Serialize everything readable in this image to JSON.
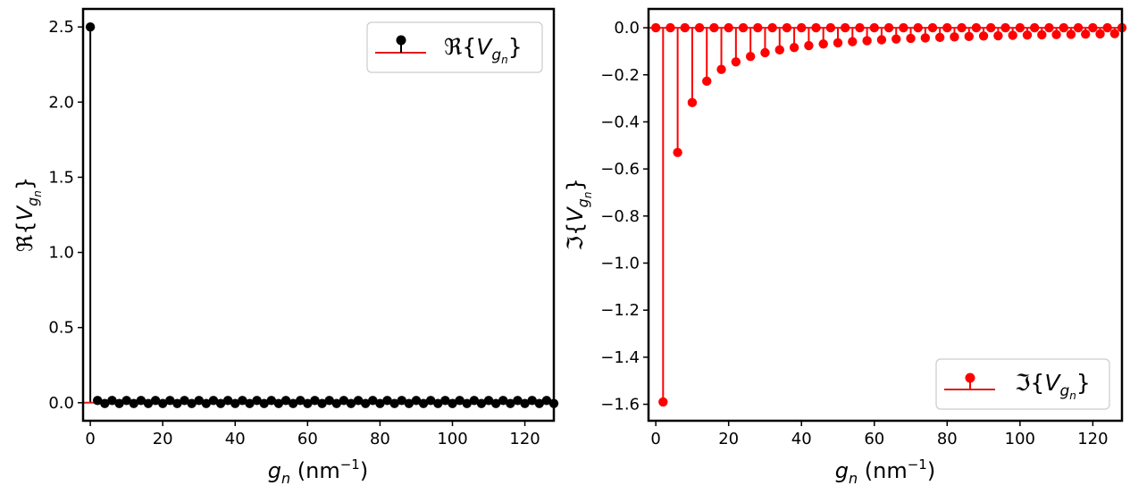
{
  "chart_data": [
    {
      "type": "stem",
      "panel": "left",
      "series": [
        {
          "name": "ℜ{V_gn}",
          "color": "#000000",
          "baseline_color": "#e31a1c",
          "x": [
            0,
            2,
            4,
            6,
            8,
            10,
            12,
            14,
            16,
            18,
            20,
            22,
            24,
            26,
            28,
            30,
            32,
            34,
            36,
            38,
            40,
            42,
            44,
            46,
            48,
            50,
            52,
            54,
            56,
            58,
            60,
            62,
            64,
            66,
            68,
            70,
            72,
            74,
            76,
            78,
            80,
            82,
            84,
            86,
            88,
            90,
            92,
            94,
            96,
            98,
            100,
            102,
            104,
            106,
            108,
            110,
            112,
            114,
            116,
            118,
            120,
            122,
            124,
            126,
            128
          ],
          "y": [
            2.5,
            0.015,
            -0.005,
            0.015,
            -0.005,
            0.015,
            -0.005,
            0.015,
            -0.005,
            0.015,
            -0.005,
            0.015,
            -0.005,
            0.015,
            -0.005,
            0.015,
            -0.005,
            0.015,
            -0.005,
            0.015,
            -0.005,
            0.015,
            -0.005,
            0.015,
            -0.005,
            0.015,
            -0.005,
            0.015,
            -0.005,
            0.015,
            -0.005,
            0.015,
            -0.005,
            0.015,
            -0.005,
            0.015,
            -0.005,
            0.015,
            -0.005,
            0.015,
            -0.005,
            0.015,
            -0.005,
            0.015,
            -0.005,
            0.015,
            -0.005,
            0.015,
            -0.005,
            0.015,
            -0.005,
            0.015,
            -0.005,
            0.015,
            -0.005,
            0.015,
            -0.005,
            0.015,
            -0.005,
            0.015,
            -0.005,
            0.015,
            -0.005,
            0.015,
            -0.005
          ]
        }
      ],
      "xlabel": "g_n (nm⁻¹)",
      "ylabel": "ℜ{V_gn}",
      "xlim": [
        -2,
        128
      ],
      "ylim": [
        -0.12,
        2.62
      ],
      "xticks": [
        0,
        20,
        40,
        60,
        80,
        100,
        120
      ],
      "yticks": [
        0.0,
        0.5,
        1.0,
        1.5,
        2.0,
        2.5
      ],
      "xtick_labels": [
        "0",
        "20",
        "40",
        "60",
        "80",
        "100",
        "120"
      ],
      "ytick_labels": [
        "0.0",
        "0.5",
        "1.0",
        "1.5",
        "2.0",
        "2.5"
      ],
      "legend_position": "upper right",
      "grid": false
    },
    {
      "type": "stem",
      "panel": "right",
      "series": [
        {
          "name": "ℑ{V_gn}",
          "color": "#ff0000",
          "baseline_color": "#e31a1c",
          "x": [
            0,
            2,
            4,
            6,
            8,
            10,
            12,
            14,
            16,
            18,
            20,
            22,
            24,
            26,
            28,
            30,
            32,
            34,
            36,
            38,
            40,
            42,
            44,
            46,
            48,
            50,
            52,
            54,
            56,
            58,
            60,
            62,
            64,
            66,
            68,
            70,
            72,
            74,
            76,
            78,
            80,
            82,
            84,
            86,
            88,
            90,
            92,
            94,
            96,
            98,
            100,
            102,
            104,
            106,
            108,
            110,
            112,
            114,
            116,
            118,
            120,
            122,
            124,
            126,
            128
          ],
          "y": [
            0,
            -1.59,
            0,
            -0.53,
            0,
            -0.318,
            0,
            -0.227,
            0,
            -0.177,
            0,
            -0.145,
            0,
            -0.122,
            0,
            -0.106,
            0,
            -0.094,
            0,
            -0.084,
            0,
            -0.076,
            0,
            -0.069,
            0,
            -0.064,
            0,
            -0.059,
            0,
            -0.055,
            0,
            -0.051,
            0,
            -0.048,
            0,
            -0.045,
            0,
            -0.043,
            0,
            -0.041,
            0,
            -0.039,
            0,
            -0.037,
            0,
            -0.035,
            0,
            -0.034,
            0,
            -0.032,
            0,
            -0.031,
            0,
            -0.03,
            0,
            -0.029,
            0,
            -0.028,
            0,
            -0.027,
            0,
            -0.026,
            0,
            -0.025,
            0
          ]
        }
      ],
      "xlabel": "g_n (nm⁻¹)",
      "ylabel": "ℑ{V_gn}",
      "xlim": [
        -2,
        128
      ],
      "ylim": [
        -1.67,
        0.08
      ],
      "xticks": [
        0,
        20,
        40,
        60,
        80,
        100,
        120
      ],
      "yticks": [
        0.0,
        -0.2,
        -0.4,
        -0.6,
        -0.8,
        -1.0,
        -1.2,
        -1.4,
        -1.6
      ],
      "xtick_labels": [
        "0",
        "20",
        "40",
        "60",
        "80",
        "100",
        "120"
      ],
      "ytick_labels": [
        "0.0",
        "−0.2",
        "−0.4",
        "−0.6",
        "−0.8",
        "−1.0",
        "−1.2",
        "−1.4",
        "−1.6"
      ],
      "legend_position": "lower right",
      "grid": false
    }
  ]
}
